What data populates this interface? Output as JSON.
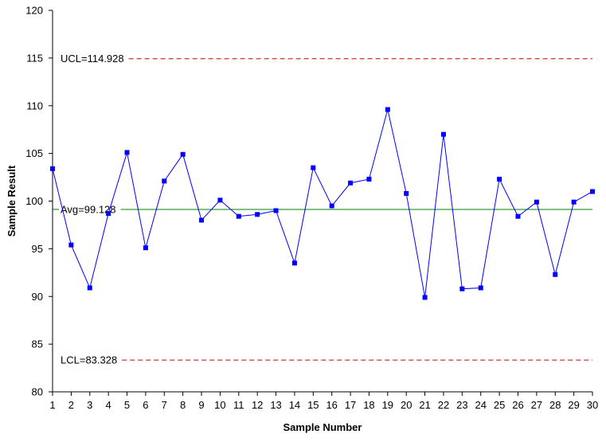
{
  "chart_data": {
    "type": "line",
    "title": "",
    "xlabel": "Sample Number",
    "ylabel": "Sample Result",
    "xlim": [
      1,
      30
    ],
    "ylim": [
      80,
      120
    ],
    "y_ticks": [
      80,
      85,
      90,
      95,
      100,
      105,
      110,
      115,
      120
    ],
    "x_ticks": [
      1,
      2,
      3,
      4,
      5,
      6,
      7,
      8,
      9,
      10,
      11,
      12,
      13,
      14,
      15,
      16,
      17,
      18,
      19,
      20,
      21,
      22,
      23,
      24,
      25,
      26,
      27,
      28,
      29,
      30
    ],
    "grid": false,
    "legend": "none",
    "series": [
      {
        "color": "#0000ff",
        "marker": "square",
        "x": [
          1,
          2,
          3,
          4,
          5,
          6,
          7,
          8,
          9,
          10,
          11,
          12,
          13,
          14,
          15,
          16,
          17,
          18,
          19,
          20,
          21,
          22,
          23,
          24,
          25,
          26,
          27,
          28,
          29,
          30
        ],
        "values": [
          103.4,
          95.4,
          90.9,
          98.7,
          105.1,
          95.1,
          102.1,
          104.9,
          98.0,
          100.1,
          98.4,
          98.6,
          99.0,
          93.5,
          103.5,
          99.5,
          101.9,
          102.3,
          109.6,
          100.8,
          89.9,
          107.0,
          90.8,
          90.9,
          102.3,
          98.4,
          99.9,
          92.3,
          99.9,
          101.0
        ]
      }
    ],
    "reference_lines": [
      {
        "label": "UCL=114.928",
        "value": 114.928,
        "color": "#cc0000",
        "style": "dashed"
      },
      {
        "label": "Avg=99.128",
        "value": 99.128,
        "color": "#008000",
        "style": "solid"
      },
      {
        "label": "LCL=83.328",
        "value": 83.328,
        "color": "#cc0000",
        "style": "dashed"
      }
    ]
  }
}
